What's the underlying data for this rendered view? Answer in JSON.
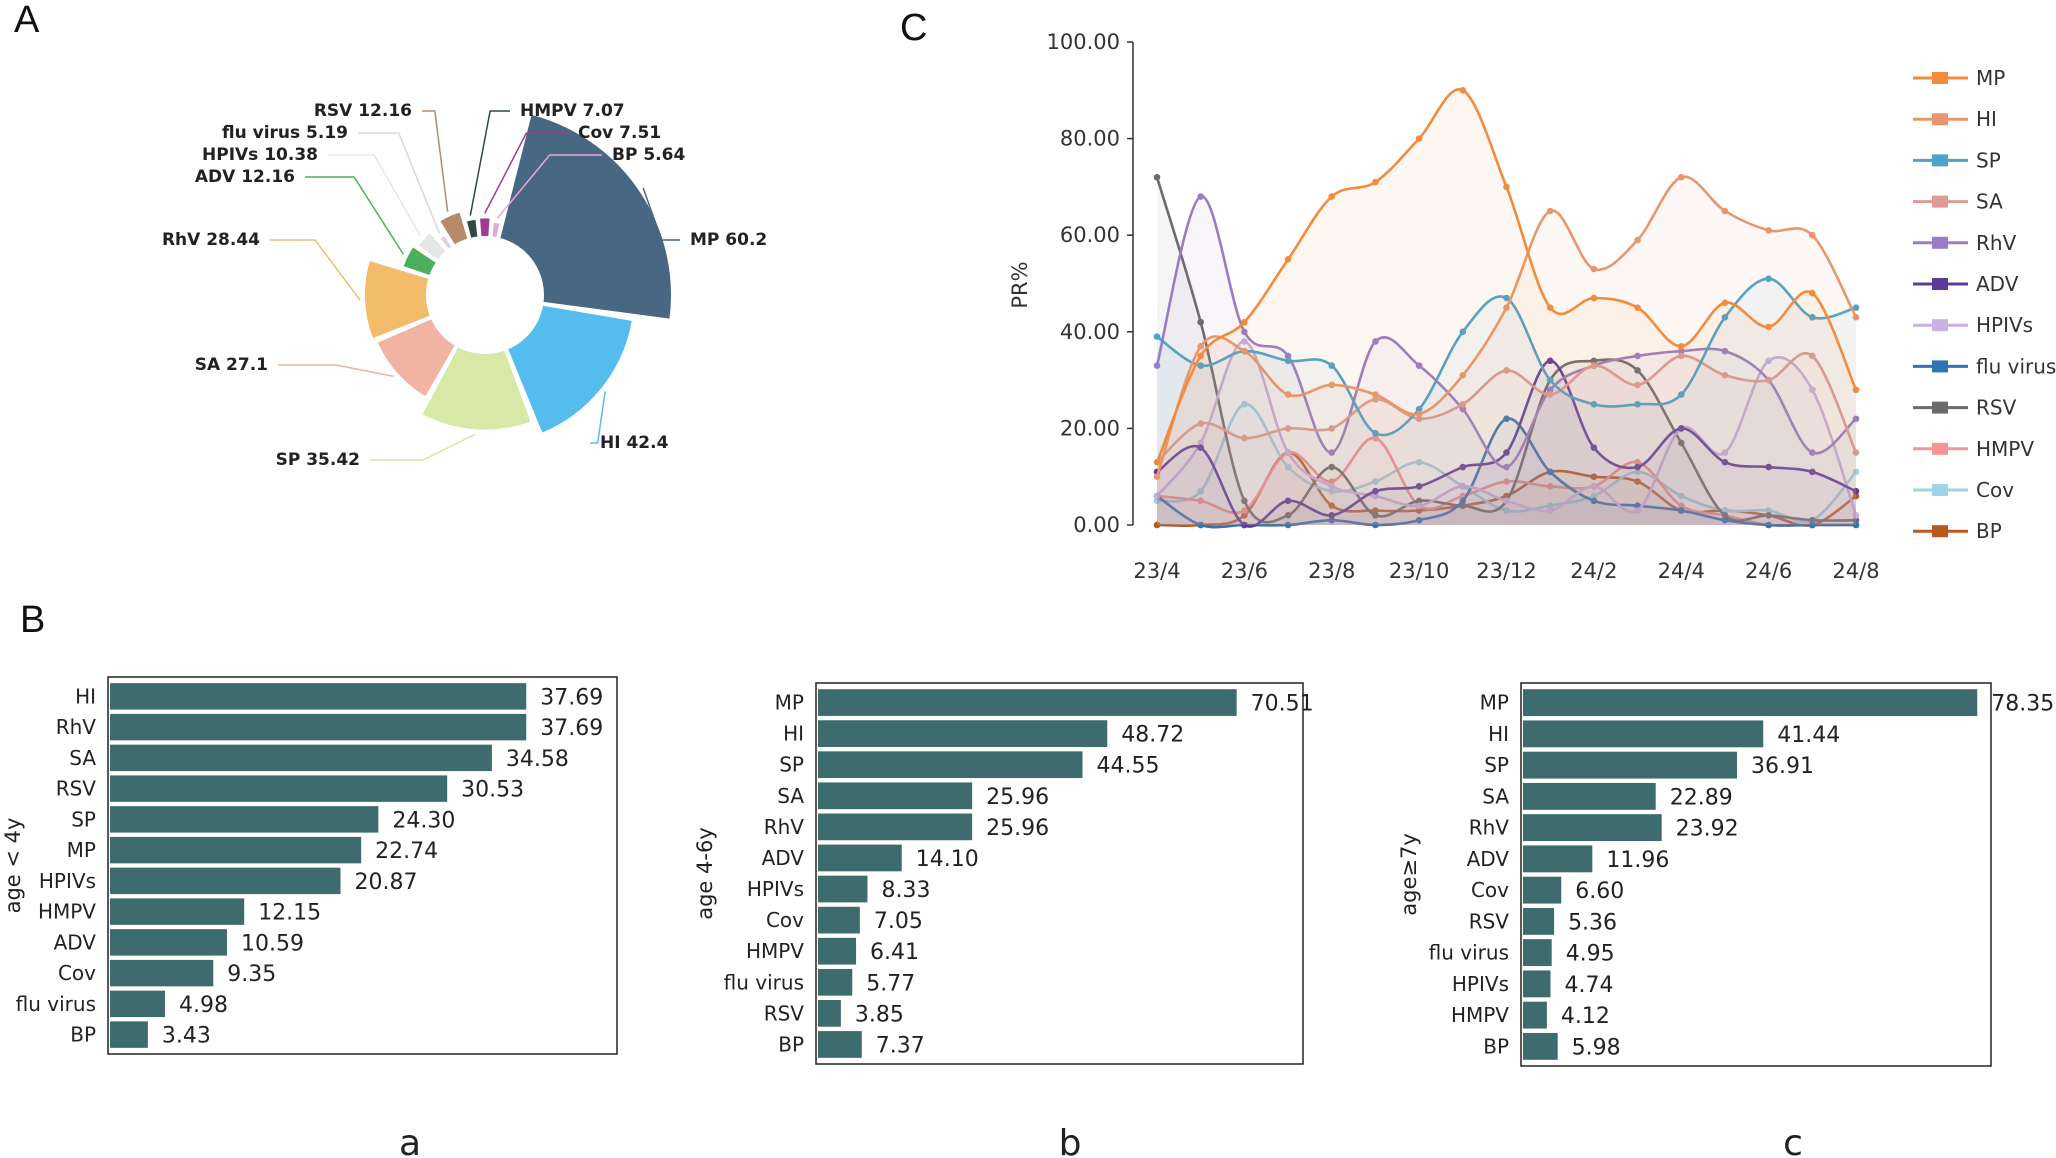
{
  "panel_labels": {
    "a": "A",
    "b": "B",
    "c": "C"
  },
  "sub_labels": {
    "a": "a",
    "b": "b",
    "c": "c"
  },
  "colors": {
    "MP": "#f28c3c",
    "HI": "#e8976c",
    "SP": "#4ea3c9",
    "SA": "#dc9d95",
    "RhV": "#9a7cc4",
    "ADV": "#5d3a9a",
    "HPIVs": "#cbb1e3",
    "flu virus": "#2f74b3",
    "RSV": "#6b6b6b",
    "HMPV": "#f49494",
    "Cov": "#9fd3e6",
    "BP": "#b8581c",
    "bar": "#3d6b6e"
  },
  "chart_data": [
    {
      "type": "pie",
      "panel": "A",
      "title": "",
      "slices": [
        {
          "name": "MP",
          "value": 60.2,
          "label": "MP 60.2",
          "color": "#476782"
        },
        {
          "name": "HI",
          "value": 42.4,
          "label": "HI 42.4",
          "color": "#55bdee"
        },
        {
          "name": "SP",
          "value": 35.42,
          "label": "SP 35.42",
          "color": "#d7e8a7"
        },
        {
          "name": "SA",
          "value": 27.1,
          "label": "SA 27.1",
          "color": "#f1b3a2"
        },
        {
          "name": "RhV",
          "value": 28.44,
          "label": "RhV 28.44",
          "color": "#f2bc6b"
        },
        {
          "name": "ADV",
          "value": 12.16,
          "label": "ADV 12.16",
          "color": "#4caf5c"
        },
        {
          "name": "HPIVs",
          "value": 10.38,
          "label": "HPIVs 10.38",
          "color": "#e6e6e6"
        },
        {
          "name": "flu virus",
          "value": 5.19,
          "label": "flu virus 5.19",
          "color": "#e3cfe3"
        },
        {
          "name": "RSV",
          "value": 12.16,
          "label": "RSV 12.16",
          "color": "#b58b6b"
        },
        {
          "name": "HMPV",
          "value": 7.07,
          "label": "HMPV 7.07",
          "color": "#2f4a3e"
        },
        {
          "name": "Cov",
          "value": 7.51,
          "label": "Cov 7.51",
          "color": "#a23d8e"
        },
        {
          "name": "BP",
          "value": 5.64,
          "label": "BP 5.64",
          "color": "#e8a8d4"
        }
      ]
    },
    {
      "type": "line",
      "panel": "C",
      "ylabel": "PR%",
      "ylim": [
        0,
        100
      ],
      "yticks": [
        "0.00",
        "20.00",
        "40.00",
        "60.00",
        "80.00",
        "100.00"
      ],
      "xticks": [
        "23/4",
        "23/6",
        "23/8",
        "23/10",
        "23/12",
        "24/2",
        "24/4",
        "24/6",
        "24/8"
      ],
      "x": [
        "23/4",
        "23/5",
        "23/6",
        "23/7",
        "23/8",
        "23/9",
        "23/10",
        "23/11",
        "23/12",
        "24/1",
        "24/2",
        "24/3",
        "24/4",
        "24/5",
        "24/6",
        "24/7",
        "24/8"
      ],
      "series": [
        {
          "name": "MP",
          "values": [
            13,
            35,
            42,
            55,
            68,
            71,
            80,
            90,
            70,
            45,
            47,
            45,
            37,
            46,
            41,
            48,
            28
          ]
        },
        {
          "name": "HI",
          "values": [
            10,
            37,
            36,
            27,
            29,
            27,
            23,
            31,
            45,
            65,
            53,
            59,
            72,
            65,
            61,
            60,
            43
          ]
        },
        {
          "name": "SP",
          "values": [
            39,
            33,
            36,
            34,
            33,
            19,
            24,
            40,
            47,
            30,
            25,
            25,
            27,
            43,
            51,
            43,
            45
          ]
        },
        {
          "name": "SA",
          "values": [
            13,
            21,
            18,
            20,
            20,
            26,
            22,
            25,
            32,
            27,
            33,
            29,
            35,
            31,
            30,
            35,
            15
          ]
        },
        {
          "name": "RhV",
          "values": [
            33,
            68,
            40,
            35,
            15,
            38,
            33,
            24,
            12,
            28,
            33,
            35,
            36,
            36,
            30,
            15,
            22
          ]
        },
        {
          "name": "ADV",
          "values": [
            11,
            16,
            0,
            5,
            2,
            7,
            8,
            12,
            15,
            34,
            16,
            12,
            20,
            13,
            12,
            11,
            7
          ]
        },
        {
          "name": "HPIVs",
          "values": [
            6,
            17,
            38,
            15,
            8,
            6,
            4,
            8,
            5,
            3,
            8,
            3,
            20,
            15,
            34,
            28,
            2
          ]
        },
        {
          "name": "flu virus",
          "values": [
            6,
            0,
            0,
            0,
            1,
            0,
            1,
            5,
            22,
            11,
            5,
            4,
            3,
            1,
            0,
            0,
            0
          ]
        },
        {
          "name": "RSV",
          "values": [
            72,
            42,
            5,
            2,
            12,
            2,
            5,
            4,
            5,
            30,
            34,
            32,
            17,
            2,
            2,
            1,
            1
          ]
        },
        {
          "name": "HMPV",
          "values": [
            6,
            5,
            3,
            15,
            9,
            18,
            4,
            6,
            9,
            8,
            8,
            13,
            4,
            2,
            0,
            0,
            0
          ]
        },
        {
          "name": "Cov",
          "values": [
            5,
            7,
            25,
            12,
            7,
            9,
            13,
            8,
            3,
            4,
            6,
            11,
            6,
            3,
            3,
            1,
            11
          ]
        },
        {
          "name": "BP",
          "values": [
            0,
            0,
            2,
            15,
            4,
            3,
            3,
            4,
            6,
            11,
            10,
            9,
            3,
            3,
            2,
            0,
            6
          ]
        }
      ]
    },
    {
      "type": "bar",
      "panel": "B-a",
      "ylabel": "age < 4y",
      "categories": [
        "HI",
        "RhV",
        "SA",
        "RSV",
        "SP",
        "MP",
        "HPIVs",
        "HMPV",
        "ADV",
        "Cov",
        "flu virus",
        "BP"
      ],
      "values": [
        37.69,
        37.69,
        34.58,
        30.53,
        24.3,
        22.74,
        20.87,
        12.15,
        10.59,
        9.35,
        4.98,
        3.43
      ],
      "labels": [
        "37.69",
        "37.69",
        "34.58",
        "30.53",
        "24.30",
        "22.74",
        "20.87",
        "12.15",
        "10.59",
        "9.35",
        "4.98",
        "3.43"
      ],
      "xmax": 45
    },
    {
      "type": "bar",
      "panel": "B-b",
      "ylabel": "age 4-6y",
      "categories": [
        "MP",
        "HI",
        "SP",
        "SA",
        "RhV",
        "ADV",
        "HPIVs",
        "Cov",
        "HMPV",
        "flu virus",
        "RSV",
        "BP"
      ],
      "values": [
        70.51,
        48.72,
        44.55,
        25.96,
        25.96,
        14.1,
        8.33,
        7.05,
        6.41,
        5.77,
        3.85,
        7.37
      ],
      "labels": [
        "70.51",
        "48.72",
        "44.55",
        "25.96",
        "25.96",
        "14.10",
        "8.33",
        "7.05",
        "6.41",
        "5.77",
        "3.85",
        "7.37"
      ],
      "xmax": 80
    },
    {
      "type": "bar",
      "panel": "B-c",
      "ylabel": "age≥7y",
      "categories": [
        "MP",
        "HI",
        "SP",
        "SA",
        "RhV",
        "ADV",
        "Cov",
        "RSV",
        "flu virus",
        "HPIVs",
        "HMPV",
        "BP"
      ],
      "values": [
        78.35,
        41.44,
        36.91,
        22.89,
        23.92,
        11.96,
        6.6,
        5.36,
        4.95,
        4.74,
        4.12,
        5.98
      ],
      "labels": [
        "78.35",
        "41.44",
        "36.91",
        "22.89",
        "23.92",
        "11.96",
        "6.60",
        "5.36",
        "4.95",
        "4.74",
        "4.12",
        "5.98"
      ],
      "xmax": 79
    }
  ]
}
